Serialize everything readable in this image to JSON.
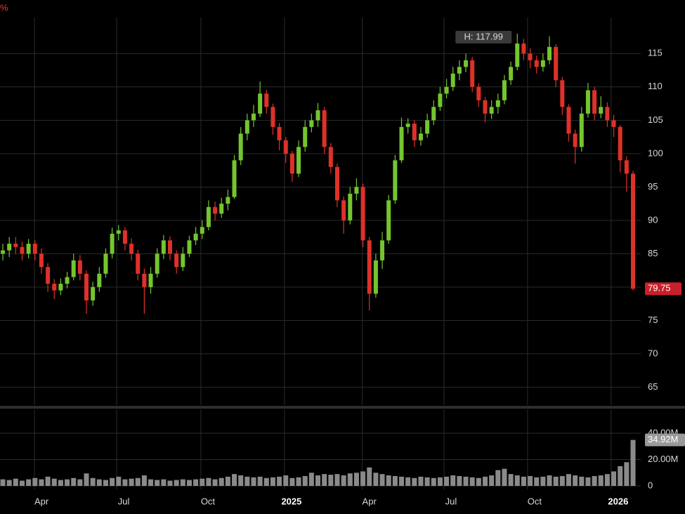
{
  "chart_data": {
    "type": "candlestick",
    "corner_label": "%",
    "up_color": "#74c52f",
    "down_color": "#de3129",
    "categories": [
      null,
      null,
      null,
      null,
      null,
      null,
      null,
      null,
      null,
      null,
      null,
      null,
      null,
      null,
      null,
      null,
      null,
      null,
      null,
      null,
      null,
      null,
      null,
      null,
      null,
      null,
      null,
      null,
      null,
      null,
      null,
      null,
      null,
      null,
      null,
      null,
      null,
      null,
      null,
      null,
      null,
      null,
      null,
      null,
      null,
      null,
      null,
      null,
      null,
      null,
      null,
      null,
      null,
      null,
      null,
      null,
      null,
      null,
      null,
      null,
      null,
      null,
      null,
      null,
      null,
      null,
      null,
      null,
      null,
      null,
      null,
      null,
      null,
      null,
      null,
      null,
      null,
      null,
      null,
      null,
      null,
      null,
      null,
      null,
      null,
      null,
      null,
      null,
      null,
      null,
      null,
      null,
      null,
      null,
      null,
      null,
      null,
      null,
      null
    ],
    "open": [
      85,
      85.5,
      86.5,
      86,
      85,
      86.5,
      85,
      83,
      80.5,
      79.5,
      80.5,
      81.5,
      84,
      82,
      78,
      80,
      82,
      85,
      88,
      88.5,
      86.5,
      85,
      82,
      80,
      82,
      85,
      87,
      85,
      83,
      85,
      87,
      88,
      89,
      92,
      91,
      92.5,
      93.5,
      99,
      103,
      105,
      106,
      109,
      107,
      104,
      102,
      100,
      97,
      101,
      104,
      105,
      106.5,
      101,
      98,
      93,
      90,
      94,
      95,
      87,
      79,
      84,
      87,
      93,
      99,
      104,
      104.5,
      102,
      103,
      105,
      107,
      109,
      110,
      112,
      113,
      114,
      110,
      108,
      106,
      107,
      108,
      111,
      113,
      116.5,
      115,
      114,
      113,
      114,
      116,
      111,
      107,
      103,
      101,
      106,
      109.5,
      106,
      107,
      105,
      104,
      99,
      97
    ],
    "high": [
      86.5,
      87.5,
      87.5,
      86.8,
      87.2,
      87,
      85.8,
      83.6,
      81.2,
      81.3,
      82.3,
      85,
      84.8,
      82.5,
      80.8,
      83,
      85.8,
      88.9,
      89.3,
      89,
      87.3,
      85.6,
      82.8,
      83,
      85.8,
      87.8,
      87.6,
      85.5,
      86,
      87.7,
      89,
      90,
      93,
      92.8,
      93.4,
      94.6,
      99.8,
      104,
      106,
      107.3,
      110.8,
      109.6,
      107.5,
      104.6,
      102.5,
      100.4,
      102,
      105,
      106,
      107.6,
      107,
      101.6,
      98.5,
      93.6,
      95,
      96.3,
      95.5,
      87.5,
      85,
      88.3,
      93.8,
      99.8,
      105.4,
      105.3,
      105,
      104,
      106,
      108,
      110,
      111.2,
      113,
      114,
      115,
      114.5,
      110.6,
      108.5,
      108,
      109,
      111.8,
      113.8,
      117.99,
      117.2,
      115.8,
      114.7,
      115,
      117.6,
      116.4,
      111.5,
      107.4,
      103.6,
      107,
      110.6,
      110,
      108.6,
      107.7,
      105.8,
      104.3,
      99.6,
      97.4
    ],
    "low": [
      84,
      84.5,
      85,
      84,
      84.3,
      84,
      82,
      79.3,
      78.2,
      78.8,
      79.8,
      81,
      81,
      76,
      77.2,
      79.3,
      81.4,
      84.3,
      87,
      85.5,
      84,
      81,
      76,
      79,
      81.4,
      84.2,
      84,
      82,
      82.4,
      84.5,
      86.3,
      87.2,
      88.5,
      90,
      90.4,
      91.5,
      93.2,
      98.3,
      102,
      104,
      105.5,
      106,
      102.8,
      100.5,
      98.6,
      95.8,
      96.5,
      100.3,
      103.2,
      104,
      100,
      97,
      92,
      88,
      89.4,
      93,
      86,
      76.5,
      78.4,
      82.7,
      86.5,
      92.5,
      98.6,
      103,
      101,
      101.2,
      102.4,
      104.3,
      106.4,
      108.3,
      109.4,
      111,
      112.2,
      109.2,
      107,
      104.7,
      105.2,
      106,
      107.4,
      110.3,
      112.5,
      114,
      112.8,
      112,
      112.3,
      113.4,
      110,
      105.8,
      101.8,
      98.5,
      100.3,
      105.4,
      105,
      105.3,
      104,
      102.5,
      97.2,
      94.3,
      79.5
    ],
    "close": [
      85.5,
      86.5,
      86,
      85,
      86.5,
      85,
      83,
      80.5,
      79.5,
      80.5,
      81.5,
      84,
      82,
      78,
      80,
      82,
      85,
      88,
      88.5,
      86.5,
      85,
      82,
      80,
      82,
      85,
      87,
      85,
      83,
      85,
      87,
      88,
      89,
      92,
      91,
      92.5,
      93.5,
      99,
      103,
      105,
      106,
      109,
      107,
      104,
      102,
      100,
      97,
      101,
      104,
      105,
      106.5,
      101,
      98,
      93,
      90,
      94,
      95,
      87,
      79,
      84,
      87,
      93,
      99,
      104,
      104.5,
      102,
      103,
      105,
      107,
      109,
      110,
      112,
      113,
      114,
      110,
      108,
      106,
      107,
      108,
      111,
      113,
      116.5,
      115,
      114,
      113,
      114,
      116,
      111,
      107,
      103,
      101,
      106,
      109.5,
      106,
      107,
      105,
      104,
      99,
      97,
      79.75
    ],
    "xlim": [
      -0.44,
      99.2
    ],
    "xticks": [
      {
        "value": 4.92,
        "label": "Apr"
      },
      {
        "value": 17.7,
        "label": "Jul"
      },
      {
        "value": 30.8,
        "label": "Oct"
      },
      {
        "value": 43.8,
        "label": "2025"
      },
      {
        "value": 55.9,
        "label": "Apr"
      },
      {
        "value": 68.6,
        "label": "Jul"
      },
      {
        "value": 81.6,
        "label": "Oct"
      },
      {
        "value": 94.6,
        "label": "2026"
      }
    ],
    "ylim": [
      62.3,
      120.4
    ],
    "yticks": [
      65,
      70,
      75,
      80,
      85,
      90,
      95,
      100,
      105,
      110,
      115
    ],
    "grid": true,
    "high_label": "H: 117.99",
    "last_price_label": "79.75",
    "volume": {
      "color": "#8a8a8a",
      "values": [
        5,
        4.5,
        5.5,
        4,
        5,
        6,
        5,
        7,
        5.5,
        4.5,
        5,
        6,
        5,
        9.5,
        6,
        5,
        4.5,
        6,
        7,
        5,
        5.5,
        6,
        8,
        5,
        4.5,
        5,
        4,
        4.5,
        5,
        4.5,
        5,
        5.5,
        6,
        5,
        6,
        7,
        9,
        8,
        7,
        6.5,
        7,
        6,
        6.5,
        7,
        8,
        6,
        6.5,
        7.5,
        10,
        8,
        9,
        8.5,
        9,
        8,
        9.5,
        10,
        11,
        14,
        10,
        9,
        8,
        7.5,
        7,
        6.5,
        6,
        7,
        6.5,
        6,
        6.5,
        7,
        8,
        7.5,
        7,
        6.5,
        6,
        7,
        8,
        12,
        13,
        9,
        8,
        7,
        7.5,
        6.5,
        7,
        8,
        7,
        7.5,
        9,
        8,
        7,
        6.5,
        7.5,
        8,
        9,
        11,
        15,
        18,
        34.92
      ],
      "ylim": [
        0,
        46.4
      ],
      "yticks": [
        0,
        {
          "value": 20,
          "label": "20.00M"
        },
        {
          "value": 40,
          "label": "40.00M"
        }
      ],
      "last_label": "34.92M"
    }
  }
}
